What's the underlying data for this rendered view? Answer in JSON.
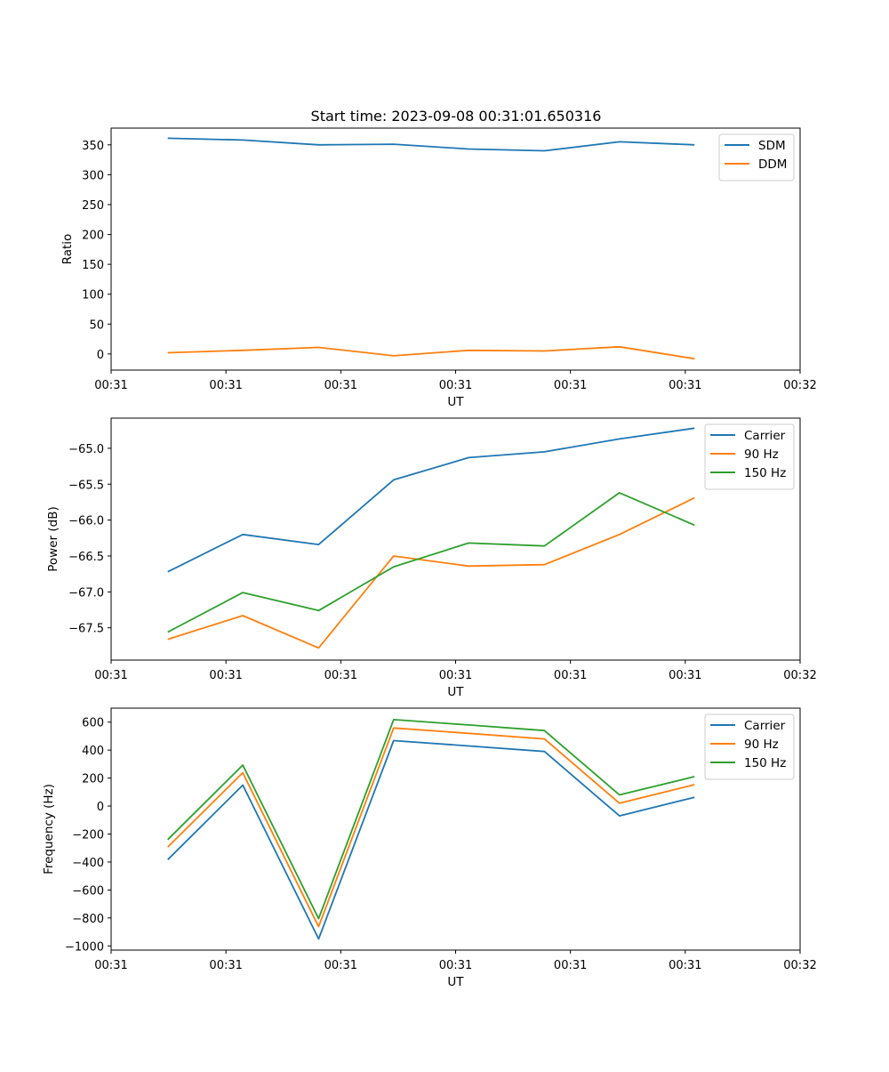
{
  "title": "Start time: 2023-09-08 00:31:01.650316",
  "chart_data": [
    {
      "type": "line",
      "xlabel": "UT",
      "ylabel": "Ratio",
      "xlim": [
        0,
        9
      ],
      "ylim": [
        -27,
        378
      ],
      "x_ticks": [
        0,
        1.5,
        3,
        4.5,
        6,
        7.5,
        9
      ],
      "x_tick_labels": [
        "00:31",
        "00:31",
        "00:31",
        "00:31",
        "00:31",
        "00:31",
        "00:32"
      ],
      "y_ticks": [
        0,
        50,
        100,
        150,
        200,
        250,
        300,
        350
      ],
      "y_tick_labels": [
        "0",
        "50",
        "100",
        "150",
        "200",
        "250",
        "300",
        "350"
      ],
      "x": [
        0.74,
        1.72,
        2.71,
        3.69,
        4.67,
        5.66,
        6.64,
        7.62
      ],
      "series": [
        {
          "name": "SDM",
          "color": "#1f77b4",
          "values": [
            361,
            358,
            350,
            351,
            343,
            340,
            355,
            350
          ]
        },
        {
          "name": "DDM",
          "color": "#ff7f0e",
          "values": [
            2,
            6,
            11,
            -3,
            6,
            5,
            12,
            -8
          ]
        }
      ],
      "legend": "top-right"
    },
    {
      "type": "line",
      "xlabel": "UT",
      "ylabel": "Power (dB)",
      "xlim": [
        0,
        9
      ],
      "ylim": [
        -67.95,
        -64.58
      ],
      "x_ticks": [
        0,
        1.5,
        3,
        4.5,
        6,
        7.5,
        9
      ],
      "x_tick_labels": [
        "00:31",
        "00:31",
        "00:31",
        "00:31",
        "00:31",
        "00:31",
        "00:32"
      ],
      "y_ticks": [
        -67.5,
        -67.0,
        -66.5,
        -66.0,
        -65.5,
        -65.0
      ],
      "y_tick_labels": [
        "−67.5",
        "−67.0",
        "−66.5",
        "−66.0",
        "−65.5",
        "−65.0"
      ],
      "x": [
        0.74,
        1.72,
        2.71,
        3.69,
        4.67,
        5.66,
        6.64,
        7.62
      ],
      "series": [
        {
          "name": "Carrier",
          "color": "#1f77b4",
          "values": [
            -66.72,
            -66.2,
            -66.34,
            -65.44,
            -65.13,
            -65.05,
            -64.87,
            -64.72
          ]
        },
        {
          "name": "90 Hz",
          "color": "#ff7f0e",
          "values": [
            -67.66,
            -67.33,
            -67.78,
            -66.5,
            -66.64,
            -66.62,
            -66.2,
            -65.69
          ]
        },
        {
          "name": "150 Hz",
          "color": "#2ca02c",
          "values": [
            -67.56,
            -67.01,
            -67.26,
            -66.65,
            -66.32,
            -66.36,
            -65.62,
            -66.07
          ]
        }
      ],
      "legend": "top-right"
    },
    {
      "type": "line",
      "xlabel": "UT",
      "ylabel": "Frequency (Hz)",
      "xlim": [
        0,
        9
      ],
      "ylim": [
        -1030,
        700
      ],
      "x_ticks": [
        0,
        1.5,
        3,
        4.5,
        6,
        7.5,
        9
      ],
      "x_tick_labels": [
        "00:31",
        "00:31",
        "00:31",
        "00:31",
        "00:31",
        "00:31",
        "00:32"
      ],
      "y_ticks": [
        -1000,
        -800,
        -600,
        -400,
        -200,
        0,
        200,
        400,
        600
      ],
      "y_tick_labels": [
        "−1000",
        "−800",
        "−600",
        "−400",
        "−200",
        "0",
        "200",
        "400",
        "600"
      ],
      "x": [
        0.74,
        1.72,
        2.71,
        3.69,
        4.67,
        5.66,
        6.64,
        7.62
      ],
      "series": [
        {
          "name": "Carrier",
          "color": "#1f77b4",
          "values": [
            -383,
            150,
            -950,
            468,
            430,
            390,
            -70,
            63
          ]
        },
        {
          "name": "90 Hz",
          "color": "#ff7f0e",
          "values": [
            -293,
            238,
            -862,
            558,
            520,
            480,
            20,
            153
          ]
        },
        {
          "name": "150 Hz",
          "color": "#2ca02c",
          "values": [
            -240,
            293,
            -805,
            618,
            580,
            540,
            80,
            210
          ]
        }
      ],
      "legend": "top-right"
    }
  ]
}
